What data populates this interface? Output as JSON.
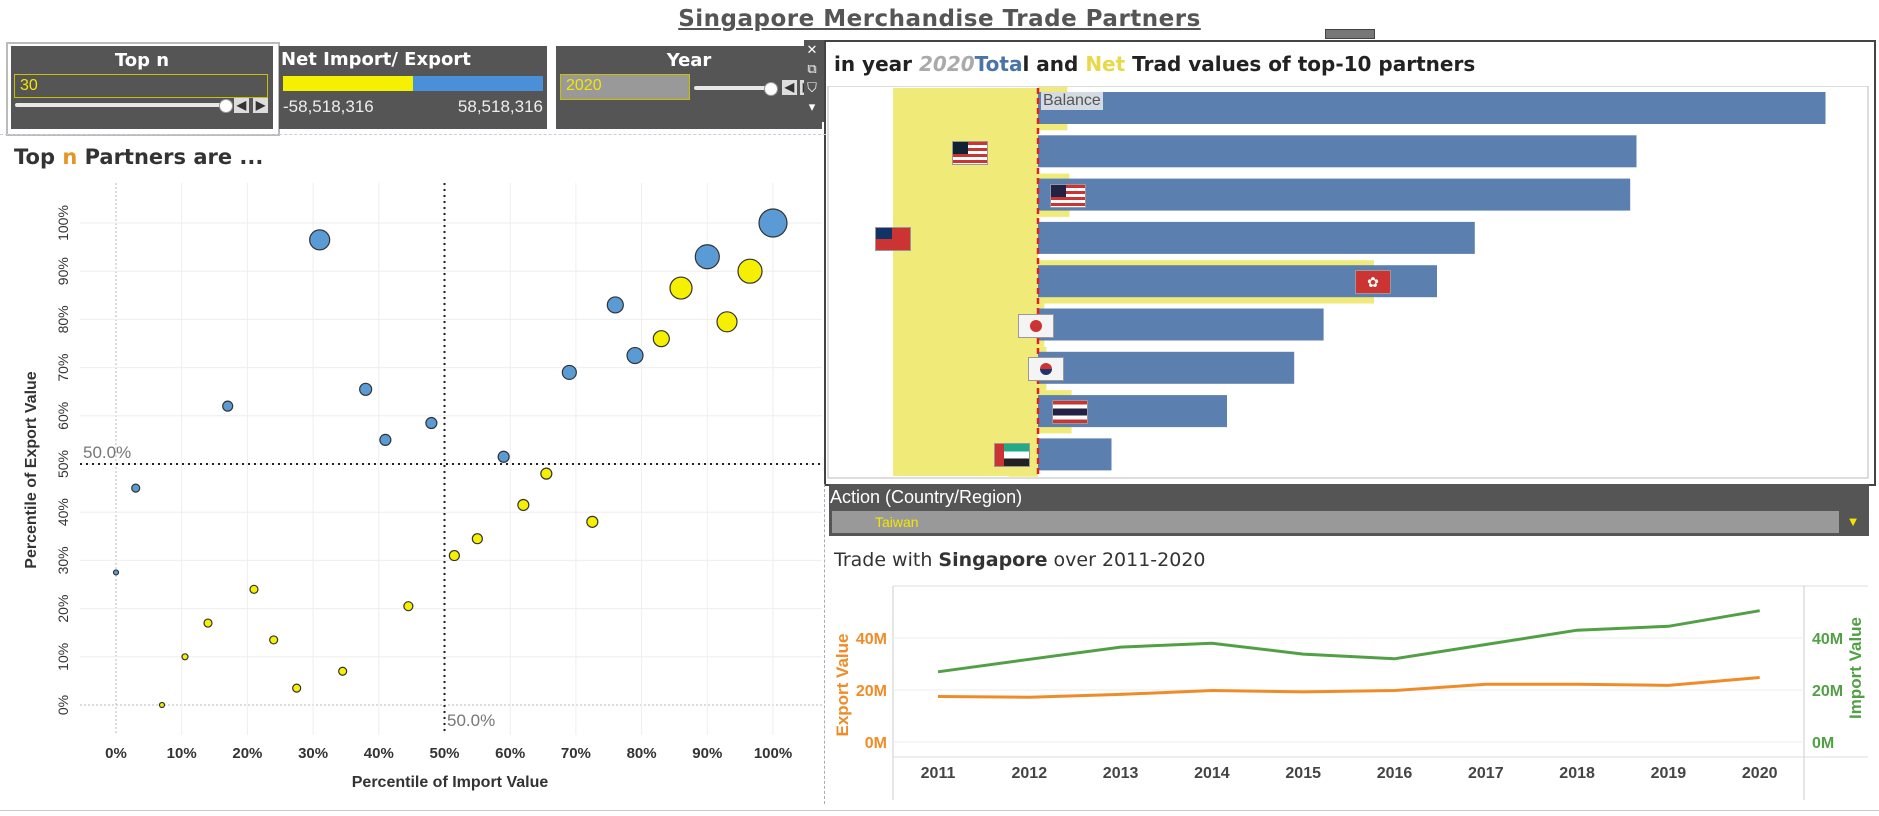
{
  "page_title": "Singapore Merchandise Trade Partners",
  "controls": {
    "topn": {
      "title": "Top n",
      "value": "30"
    },
    "netie": {
      "title": "Net Import/ Export",
      "min_label": "-58,518,316",
      "max_label": "58,518,316",
      "colors": {
        "import": "#f5f000",
        "export": "#4a90d9"
      }
    },
    "year": {
      "title": "Year",
      "value": "2020"
    }
  },
  "toolbar": {
    "close_icon": "✕",
    "popout_icon": "⧉",
    "filter_icon": "⛉",
    "menu_icon": "▾"
  },
  "scatter": {
    "heading_pre": "Top",
    "heading_n": "n",
    "heading_post": "Partners are ...",
    "reference_label_x": "50.0%",
    "reference_label_y": "50.0%"
  },
  "bar_panel": {
    "title_parts": [
      "in year",
      "2020",
      "Tota",
      "l and",
      "Net",
      "Trad values of top-10 partners"
    ],
    "balance_label": "Balance",
    "flags": [
      "malaysia-flag",
      "usa-flag",
      "taiwan-flag",
      "hong-kong-flag",
      "japan-flag",
      "south-korea-flag",
      "thailand-flag",
      "uae-flag"
    ]
  },
  "action": {
    "title": "Action (Country/Region)",
    "value": "Taiwan"
  },
  "line_panel": {
    "title_pre": "Trade with",
    "title_bold": "Singapore",
    "title_post": "over 2011-2020"
  },
  "chart_data": [
    {
      "type": "scatter",
      "xlabel": "Percentile of Import Value",
      "ylabel": "Percentile of Export Value",
      "xlim": [
        -0.05,
        1.05
      ],
      "ylim": [
        -0.05,
        1.05
      ],
      "xticks": [
        "0%",
        "10%",
        "20%",
        "30%",
        "40%",
        "50%",
        "60%",
        "70%",
        "80%",
        "90%",
        "100%"
      ],
      "yticks": [
        "0%",
        "10%",
        "20%",
        "30%",
        "40%",
        "50%",
        "60%",
        "70%",
        "80%",
        "90%",
        "100%"
      ],
      "reference_lines": {
        "x": 0.5,
        "y": 0.5
      },
      "colors": {
        "export": "#5b9bd5",
        "import": "#f5f000"
      },
      "points": [
        {
          "x": 1.0,
          "y": 1.0,
          "size": 14,
          "net": "export"
        },
        {
          "x": 0.9,
          "y": 0.93,
          "size": 12,
          "net": "export"
        },
        {
          "x": 0.31,
          "y": 0.965,
          "size": 10,
          "net": "export"
        },
        {
          "x": 0.965,
          "y": 0.9,
          "size": 12,
          "net": "import"
        },
        {
          "x": 0.86,
          "y": 0.865,
          "size": 11,
          "net": "import"
        },
        {
          "x": 0.76,
          "y": 0.83,
          "size": 8,
          "net": "export"
        },
        {
          "x": 0.93,
          "y": 0.795,
          "size": 10,
          "net": "import"
        },
        {
          "x": 0.83,
          "y": 0.76,
          "size": 8,
          "net": "import"
        },
        {
          "x": 0.79,
          "y": 0.725,
          "size": 8,
          "net": "export"
        },
        {
          "x": 0.69,
          "y": 0.69,
          "size": 7,
          "net": "export"
        },
        {
          "x": 0.38,
          "y": 0.655,
          "size": 6,
          "net": "export"
        },
        {
          "x": 0.17,
          "y": 0.62,
          "size": 5,
          "net": "export"
        },
        {
          "x": 0.48,
          "y": 0.585,
          "size": 5.5,
          "net": "export"
        },
        {
          "x": 0.41,
          "y": 0.55,
          "size": 5.5,
          "net": "export"
        },
        {
          "x": 0.59,
          "y": 0.515,
          "size": 5.5,
          "net": "export"
        },
        {
          "x": 0.655,
          "y": 0.48,
          "size": 5.5,
          "net": "import"
        },
        {
          "x": 0.03,
          "y": 0.45,
          "size": 4,
          "net": "export"
        },
        {
          "x": 0.62,
          "y": 0.415,
          "size": 5.5,
          "net": "import"
        },
        {
          "x": 0.725,
          "y": 0.38,
          "size": 5.5,
          "net": "import"
        },
        {
          "x": 0.55,
          "y": 0.345,
          "size": 5,
          "net": "import"
        },
        {
          "x": 0.515,
          "y": 0.31,
          "size": 5,
          "net": "import"
        },
        {
          "x": 0.0,
          "y": 0.275,
          "size": 2.5,
          "net": "export"
        },
        {
          "x": 0.21,
          "y": 0.24,
          "size": 4,
          "net": "import"
        },
        {
          "x": 0.445,
          "y": 0.205,
          "size": 4.5,
          "net": "import"
        },
        {
          "x": 0.14,
          "y": 0.17,
          "size": 4,
          "net": "import"
        },
        {
          "x": 0.24,
          "y": 0.135,
          "size": 4,
          "net": "import"
        },
        {
          "x": 0.105,
          "y": 0.1,
          "size": 3,
          "net": "import"
        },
        {
          "x": 0.345,
          "y": 0.07,
          "size": 4,
          "net": "import"
        },
        {
          "x": 0.275,
          "y": 0.035,
          "size": 4,
          "net": "import"
        },
        {
          "x": 0.07,
          "y": 0.0,
          "size": 2.5,
          "net": "import"
        }
      ]
    },
    {
      "type": "bar",
      "orientation": "horizontal",
      "title": "in year 2020 Total and Net Trad values of top-10 partners",
      "color_total": "#5b80b0",
      "color_net": "#f0eb78",
      "xlim": [
        -1.0,
        3.75
      ],
      "series": [
        {
          "name": "Total",
          "values": [
            3.75,
            2.85,
            2.82,
            2.08,
            1.9,
            1.36,
            1.22,
            0.9,
            0.35
          ]
        },
        {
          "name": "Net",
          "values": [
            0.14,
            -0.33,
            0.15,
            -0.69,
            1.6,
            0.03,
            0.04,
            0.16,
            -0.14
          ]
        }
      ]
    },
    {
      "type": "line",
      "x": [
        2011,
        2012,
        2013,
        2014,
        2015,
        2016,
        2017,
        2018,
        2019,
        2020
      ],
      "xticks": [
        "2011",
        "2012",
        "2013",
        "2014",
        "2015",
        "2016",
        "2017",
        "2018",
        "2019",
        "2020"
      ],
      "ylabel_left": "Export Value",
      "ylabel_right": "Import Value",
      "yticks": [
        "0M",
        "20M",
        "40M"
      ],
      "ylim": [
        0,
        55
      ],
      "series": [
        {
          "name": "Export Value",
          "color": "#f08c28",
          "values": [
            17.5,
            17.2,
            18.3,
            19.8,
            19.3,
            19.8,
            22.2,
            22.2,
            21.8,
            24.8
          ]
        },
        {
          "name": "Import Value",
          "color": "#52a046",
          "values": [
            27.0,
            31.8,
            36.5,
            38.0,
            33.8,
            32.0,
            37.5,
            43.0,
            44.5,
            50.5
          ]
        }
      ]
    }
  ]
}
